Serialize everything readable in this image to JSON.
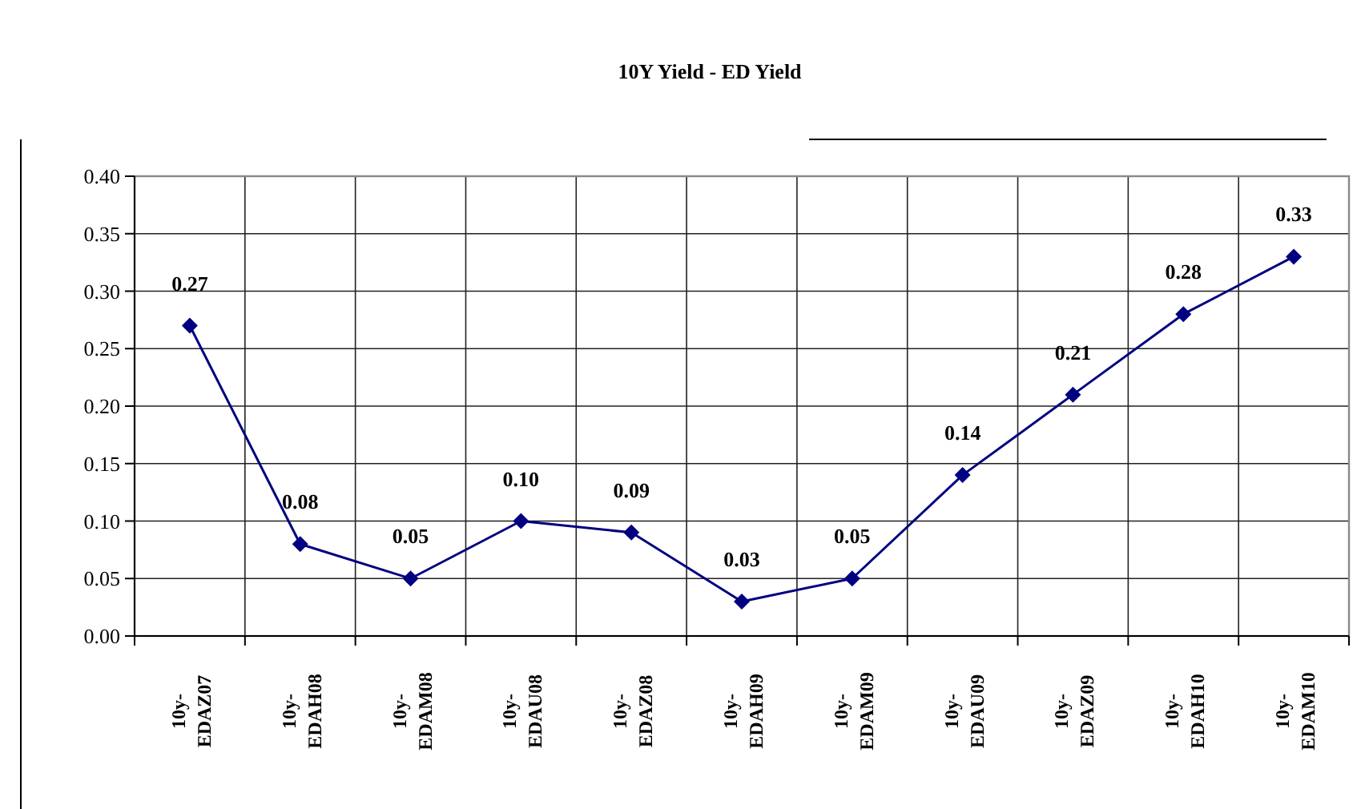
{
  "chart_data": {
    "type": "line",
    "title": "10Y Yield - ED Yield",
    "categories": [
      "10y-EDAZ07",
      "10y-EDAH08",
      "10y-EDAM08",
      "10y-EDAU08",
      "10y-EDAZ08",
      "10y-EDAH09",
      "10y-EDAM09",
      "10y-EDAU09",
      "10y-EDAZ09",
      "10y-EDAH10",
      "10y-EDAM10"
    ],
    "series": [
      {
        "color": "#000080",
        "values": [
          0.27,
          0.08,
          0.05,
          0.1,
          0.09,
          0.03,
          0.05,
          0.14,
          0.21,
          0.28,
          0.33
        ]
      }
    ],
    "value_labels": [
      "0.27",
      "0.08",
      "0.05",
      "0.10",
      "0.09",
      "0.03",
      "0.05",
      "0.14",
      "0.21",
      "0.28",
      "0.33"
    ],
    "ylim": [
      0,
      0.4
    ],
    "yticks": [
      {
        "value": 0,
        "label": "0.00"
      },
      {
        "value": 0.05,
        "label": "0.05"
      },
      {
        "value": 0.1,
        "label": "0.10"
      },
      {
        "value": 0.15,
        "label": "0.15"
      },
      {
        "value": 0.2,
        "label": "0.20"
      },
      {
        "value": 0.25,
        "label": "0.25"
      },
      {
        "value": 0.3,
        "label": "0.30"
      },
      {
        "value": 0.35,
        "label": "0.35"
      },
      {
        "value": 0.4,
        "label": "0.40"
      }
    ],
    "grid": true,
    "marker": "diamond",
    "line_style": "solid"
  }
}
